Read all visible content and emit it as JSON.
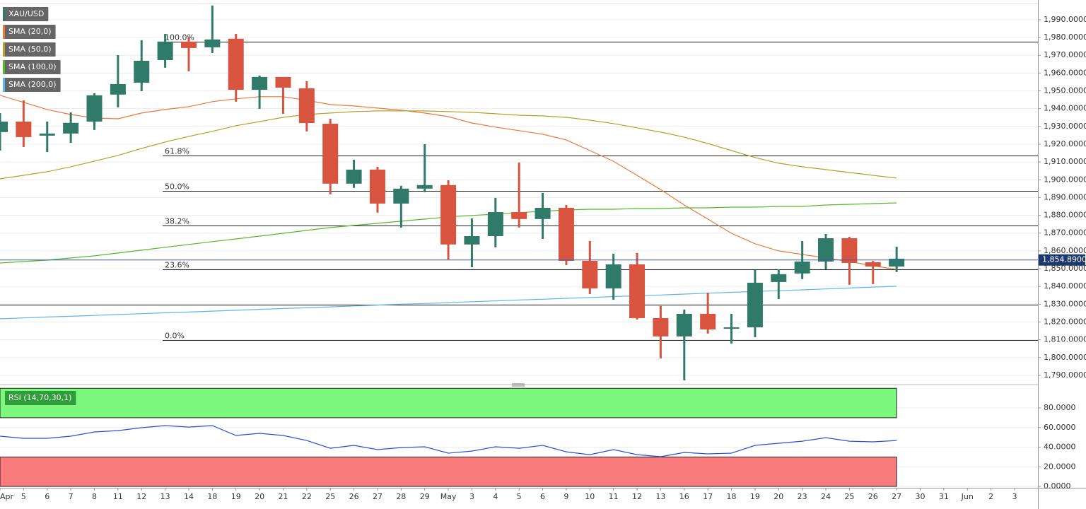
{
  "chart_data": [
    {
      "type": "candlestick",
      "title": "XAU/USD",
      "categories": [
        "Apr",
        "5",
        "6",
        "7",
        "8",
        "11",
        "12",
        "13",
        "14",
        "18",
        "19",
        "20",
        "21",
        "22",
        "25",
        "26",
        "27",
        "28",
        "29",
        "May",
        "3",
        "4",
        "5",
        "6",
        "9",
        "10",
        "11",
        "12",
        "13",
        "16",
        "17",
        "18",
        "19",
        "20",
        "23",
        "24",
        "25",
        "26",
        "27",
        "30",
        "31",
        "Jun",
        "2",
        "3"
      ],
      "open": [
        1926.8,
        1932.7,
        1924.8,
        1926.0,
        1932.7,
        1947.9,
        1954.6,
        1967.3,
        1977.7,
        1974.5,
        1979.3,
        1950.6,
        1957.8,
        1951.4,
        1931.5,
        1897.8,
        1905.7,
        1886.6,
        1895.0,
        1897.0,
        1863.6,
        1868.3,
        1881.8,
        1877.9,
        1884.2,
        1854.4,
        1838.9,
        1852.4,
        1822.2,
        1811.9,
        1824.6,
        1816.2,
        1817.0,
        1842.5,
        1847.3,
        1854.0,
        1867.1,
        1853.6,
        1851.2,
        null,
        null,
        null,
        null,
        null
      ],
      "high": [
        1937.5,
        1944.7,
        1932.7,
        1937.9,
        1948.6,
        1970.1,
        1978.5,
        1982.0,
        1980.1,
        1998.0,
        1982.0,
        1958.6,
        1957.8,
        1955.4,
        1934.3,
        1911.3,
        1907.3,
        1896.6,
        1920.0,
        1899.7,
        1878.3,
        1889.8,
        1909.7,
        1892.6,
        1885.8,
        1865.5,
        1858.4,
        1858.8,
        1829.0,
        1827.0,
        1836.5,
        1824.6,
        1849.2,
        1849.6,
        1865.5,
        1869.5,
        1867.9,
        1854.4,
        1862.4,
        null,
        null,
        null,
        null,
        null
      ],
      "low": [
        1916.4,
        1918.4,
        1915.6,
        1920.8,
        1928.0,
        1940.7,
        1949.8,
        1963.0,
        1961.0,
        1971.3,
        1943.9,
        1939.9,
        1937.1,
        1927.2,
        1891.8,
        1895.4,
        1881.5,
        1873.1,
        1893.0,
        1855.2,
        1850.8,
        1862.0,
        1873.1,
        1866.7,
        1852.0,
        1835.7,
        1832.5,
        1821.4,
        1799.5,
        1787.2,
        1813.5,
        1807.9,
        1811.5,
        1832.9,
        1844.1,
        1849.6,
        1840.9,
        1841.3,
        1848.1,
        null,
        null,
        null,
        null,
        null
      ],
      "close": [
        1932.7,
        1924.0,
        1926.0,
        1932.0,
        1947.5,
        1953.8,
        1966.9,
        1977.7,
        1974.1,
        1978.9,
        1950.6,
        1957.8,
        1951.8,
        1931.9,
        1897.8,
        1905.7,
        1886.6,
        1895.0,
        1897.0,
        1863.6,
        1868.3,
        1881.8,
        1877.9,
        1884.2,
        1854.4,
        1838.9,
        1852.4,
        1822.2,
        1811.9,
        1824.6,
        1815.8,
        1817.0,
        1842.1,
        1846.9,
        1854.0,
        1867.1,
        1853.2,
        1851.2,
        1855.6,
        null,
        null,
        null,
        null,
        null
      ],
      "up_color": "#2f7a68",
      "down_color": "#d9543f",
      "series": [
        {
          "name": "SMA (20,0)",
          "color": "#e8783c",
          "values": [
            1947.5,
            1943.5,
            1939.5,
            1936.7,
            1934.7,
            1934.3,
            1937.5,
            1939.5,
            1941.1,
            1943.9,
            1945.5,
            1946.7,
            1946.7,
            1944.7,
            1942.3,
            1941.5,
            1940.3,
            1939.1,
            1937.5,
            1935.5,
            1931.9,
            1929.6,
            1927.6,
            1925.6,
            1922.4,
            1916.4,
            1910.4,
            1902.5,
            1894.5,
            1885.8,
            1877.9,
            1869.9,
            1864.0,
            1860.0,
            1858.0,
            1856.0,
            1854.0,
            1851.6,
            1849.6,
            null,
            null,
            null,
            null,
            null
          ]
        },
        {
          "name": "SMA (50,0)",
          "color": "#b5a12a",
          "values": [
            1900.5,
            1902.5,
            1904.5,
            1907.3,
            1910.5,
            1913.7,
            1917.6,
            1921.2,
            1924.4,
            1927.2,
            1930.4,
            1932.7,
            1935.1,
            1936.7,
            1937.5,
            1938.3,
            1938.7,
            1938.7,
            1938.7,
            1938.3,
            1937.9,
            1937.1,
            1936.3,
            1935.9,
            1935.1,
            1933.5,
            1931.6,
            1929.2,
            1926.8,
            1924.0,
            1920.4,
            1916.4,
            1912.5,
            1909.3,
            1907.3,
            1905.7,
            1904.1,
            1902.5,
            1900.9,
            null,
            null,
            null,
            null,
            null
          ]
        },
        {
          "name": "SMA (100,0)",
          "color": "#56b82c",
          "values": [
            1853.2,
            1854.0,
            1854.8,
            1856.0,
            1857.2,
            1858.8,
            1860.4,
            1862.0,
            1863.6,
            1865.2,
            1866.7,
            1868.3,
            1869.9,
            1871.5,
            1873.1,
            1874.3,
            1875.5,
            1876.7,
            1877.9,
            1879.1,
            1879.9,
            1880.7,
            1881.5,
            1882.3,
            1883.0,
            1883.4,
            1883.4,
            1883.8,
            1883.8,
            1884.2,
            1884.2,
            1884.6,
            1884.6,
            1885.0,
            1885.0,
            1885.8,
            1886.2,
            1886.6,
            1887.0,
            null,
            null,
            null,
            null,
            null
          ]
        },
        {
          "name": "SMA (200,0)",
          "color": "#5cb6e8",
          "values": [
            1821.8,
            1822.3,
            1822.8,
            1823.2,
            1823.7,
            1824.2,
            1824.7,
            1825.2,
            1825.6,
            1826.1,
            1826.6,
            1827.1,
            1827.6,
            1828.0,
            1828.5,
            1829.0,
            1829.5,
            1830.0,
            1830.4,
            1830.9,
            1831.4,
            1831.9,
            1832.4,
            1832.8,
            1833.3,
            1833.8,
            1834.3,
            1834.8,
            1835.2,
            1835.7,
            1836.2,
            1836.7,
            1837.2,
            1837.6,
            1838.1,
            1838.6,
            1839.1,
            1839.6,
            1840.1,
            null,
            null,
            null,
            null,
            null
          ]
        }
      ],
      "levels": [
        {
          "label": "100.0%",
          "value": 1977.7
        },
        {
          "label": "61.8%",
          "value": 1913.7
        },
        {
          "label": "50.0%",
          "value": 1893.8
        },
        {
          "label": "38.2%",
          "value": 1874.3
        },
        {
          "label": "23.6%",
          "value": 1849.6
        },
        {
          "label": "0.0%",
          "value": 1809.9
        },
        {
          "value": 1829.8
        }
      ],
      "last_price": {
        "value": 1854.89,
        "label": "1,854.8900"
      },
      "ylim": [
        1786.4,
        1999.1
      ],
      "yticks": [
        {
          "value": 1790,
          "label": "1,790.0000"
        },
        {
          "value": 1800,
          "label": "1,800.0000"
        },
        {
          "value": 1810,
          "label": "1,810.0000"
        },
        {
          "value": 1820,
          "label": "1,820.0000"
        },
        {
          "value": 1830,
          "label": "1,830.0000"
        },
        {
          "value": 1840,
          "label": "1,840.0000"
        },
        {
          "value": 1850,
          "label": "1,850.0000"
        },
        {
          "value": 1860,
          "label": "1,860.0000"
        },
        {
          "value": 1870,
          "label": "1,870.0000"
        },
        {
          "value": 1880,
          "label": "1,880.0000"
        },
        {
          "value": 1890,
          "label": "1,890.0000"
        },
        {
          "value": 1900,
          "label": "1,900.0000"
        },
        {
          "value": 1910,
          "label": "1,910.0000"
        },
        {
          "value": 1920,
          "label": "1,920.0000"
        },
        {
          "value": 1930,
          "label": "1,930.0000"
        },
        {
          "value": 1940,
          "label": "1,940.0000"
        },
        {
          "value": 1950,
          "label": "1,950.0000"
        },
        {
          "value": 1960,
          "label": "1,960.0000"
        },
        {
          "value": 1970,
          "label": "1,970.0000"
        },
        {
          "value": 1980,
          "label": "1,980.0000"
        },
        {
          "value": 1990,
          "label": "1,990.0000"
        }
      ],
      "grid": true
    },
    {
      "type": "line",
      "title": "RSI (14,70,30,1)",
      "color": "#2a4fd6",
      "values": [
        51.2,
        49.0,
        49.0,
        51.2,
        55.5,
        56.9,
        59.8,
        62.0,
        60.5,
        62.0,
        51.9,
        54.1,
        51.9,
        46.8,
        38.9,
        41.8,
        37.5,
        39.6,
        40.4,
        33.9,
        36.0,
        40.4,
        38.9,
        41.8,
        35.3,
        32.4,
        37.5,
        32.4,
        30.3,
        34.6,
        33.2,
        33.9,
        41.8,
        44.0,
        46.1,
        49.7,
        46.1,
        45.4,
        46.8,
        null,
        null,
        null,
        null,
        null
      ],
      "bands": [
        {
          "from": 70,
          "to": 100,
          "color": "#7cf97c"
        },
        {
          "from": 0,
          "to": 30,
          "color": "#fa7b7b"
        }
      ],
      "ylim": [
        -1.4,
        100.9
      ],
      "yticks": [
        {
          "value": 0,
          "label": "0.0000"
        },
        {
          "value": 20,
          "label": "20.0000"
        },
        {
          "value": 40,
          "label": "40.0000"
        },
        {
          "value": 60,
          "label": "60.0000"
        },
        {
          "value": 80,
          "label": "80.0000"
        }
      ],
      "grid": true
    }
  ]
}
